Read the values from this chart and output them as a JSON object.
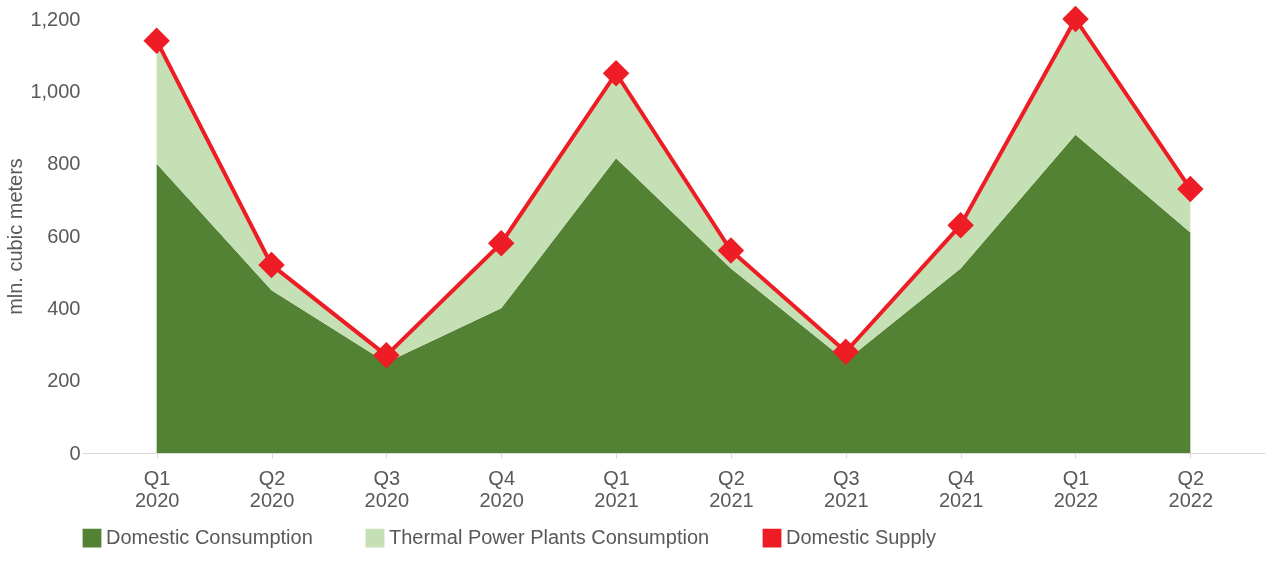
{
  "chart_data": {
    "type": "area",
    "ylabel": "mln. cubic meters",
    "categories": [
      "Q1 2020",
      "Q2 2020",
      "Q3 2020",
      "Q4 2020",
      "Q1 2021",
      "Q2 2021",
      "Q3 2021",
      "Q4 2021",
      "Q1 2022",
      "Q2 2022"
    ],
    "stacked": true,
    "series": [
      {
        "name": "Domestic Consumption",
        "color": "#548235",
        "values": [
          800,
          450,
          250,
          400,
          815,
          510,
          255,
          510,
          880,
          610
        ]
      },
      {
        "name": "Thermal Power Plants Consumption",
        "color": "#c5e0b4",
        "values": [
          340,
          70,
          20,
          180,
          235,
          50,
          25,
          120,
          320,
          120
        ]
      },
      {
        "name": "Domestic Supply",
        "type": "line",
        "color": "#ee1c25",
        "marker": "diamond",
        "values": [
          1140,
          520,
          270,
          580,
          1050,
          560,
          280,
          630,
          1200,
          730
        ]
      }
    ],
    "ylim": [
      0,
      1200
    ],
    "yticks": [
      0,
      200,
      400,
      600,
      800,
      {
        "value": 1000,
        "label": "1,000"
      },
      {
        "value": 1200,
        "label": "1,200"
      }
    ],
    "grid": false,
    "legend": "bottom"
  }
}
